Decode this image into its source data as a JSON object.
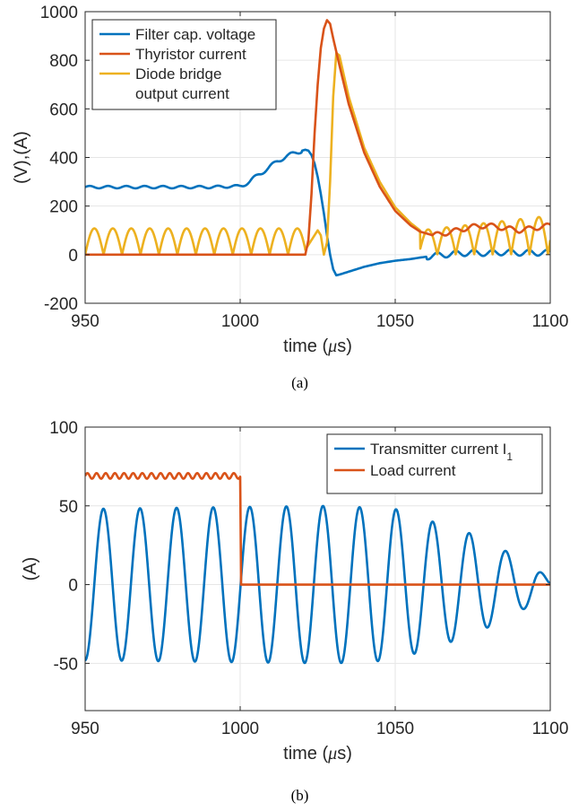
{
  "chart_data": [
    {
      "type": "line",
      "caption": "(a)",
      "xlabel_main": "time (",
      "xlabel_greek": "μ",
      "xlabel_end": "s)",
      "ylabel": "(V),(A)",
      "xlim": [
        950,
        1100
      ],
      "ylim": [
        -200,
        1000
      ],
      "xticks": [
        "950",
        "1000",
        "1050",
        "1100"
      ],
      "yticks": [
        "-200",
        "0",
        "200",
        "400",
        "600",
        "800",
        "1000"
      ],
      "grid": true,
      "legend_position": "top-left",
      "legend_lines": [
        {
          "text": "Filter cap. voltage",
          "color": "#0072BD"
        },
        {
          "text": "Thyristor current",
          "color": "#D95319"
        },
        {
          "text": "Diode bridge",
          "color": "#EDB120"
        },
        {
          "text": "output current",
          "color": ""
        }
      ],
      "series": [
        {
          "name": "Filter cap. voltage",
          "color": "#0072BD",
          "x": [
            950,
            960,
            970,
            980,
            990,
            1000,
            1003,
            1006,
            1009,
            1012,
            1015,
            1018,
            1021,
            1022,
            1023,
            1024,
            1025,
            1026,
            1027,
            1028,
            1029,
            1030,
            1031,
            1032,
            1035,
            1040,
            1045,
            1050,
            1055,
            1058,
            1062,
            1066,
            1070,
            1075,
            1080,
            1085,
            1090,
            1095,
            1100
          ],
          "y": [
            278,
            278,
            278,
            278,
            278,
            282,
            300,
            330,
            355,
            385,
            405,
            420,
            432,
            428,
            410,
            375,
            320,
            250,
            170,
            80,
            0,
            -60,
            -85,
            -82,
            -70,
            -50,
            -35,
            -25,
            -18,
            -12,
            -5,
            0,
            5,
            8,
            6,
            10,
            8,
            8,
            8
          ]
        },
        {
          "name": "Thyristor current",
          "color": "#D95319",
          "x": [
            950,
            1021,
            1022,
            1023,
            1024,
            1025,
            1026,
            1027,
            1028,
            1029,
            1030,
            1032,
            1035,
            1040,
            1045,
            1050,
            1055,
            1058,
            1062,
            1065,
            1070,
            1075,
            1080,
            1085,
            1090,
            1095,
            1100
          ],
          "y": [
            0,
            0,
            60,
            250,
            500,
            700,
            850,
            930,
            965,
            950,
            890,
            780,
            620,
            420,
            280,
            180,
            120,
            95,
            80,
            85,
            100,
            115,
            120,
            110,
            100,
            110,
            120
          ]
        },
        {
          "name": "Diode bridge output current",
          "color": "#EDB120",
          "x": [
            950,
            1020,
            1023,
            1025,
            1026,
            1027,
            1028,
            1029,
            1030,
            1031,
            1032,
            1035,
            1040,
            1045,
            1050,
            1055,
            1058,
            1100
          ],
          "y": [
            0,
            0,
            60,
            100,
            80,
            0,
            50,
            300,
            650,
            830,
            820,
            650,
            440,
            300,
            195,
            130,
            100,
            0
          ],
          "note_ripple": true
        }
      ]
    },
    {
      "type": "line",
      "caption": "(b)",
      "xlabel_main": "time (",
      "xlabel_greek": "μ",
      "xlabel_end": "s)",
      "ylabel": "(A)",
      "xlim": [
        950,
        1100
      ],
      "ylim": [
        -80,
        100
      ],
      "xticks": [
        "950",
        "1000",
        "1050",
        "1100"
      ],
      "yticks": [
        "-50",
        "0",
        "50",
        "100"
      ],
      "grid": true,
      "legend_position": "top-right",
      "legend_lines": [
        {
          "text": "Transmitter current I",
          "sub": "1",
          "color": "#0072BD"
        },
        {
          "text": "Load current",
          "color": "#D95319"
        }
      ],
      "series": [
        {
          "name": "Transmitter current I1",
          "color": "#0072BD",
          "period_us": 11.8,
          "amplitude": [
            [
              950,
              48
            ],
            [
              1030,
              50
            ],
            [
              1050,
              48
            ],
            [
              1062,
              40
            ],
            [
              1075,
              32
            ],
            [
              1085,
              22
            ],
            [
              1095,
              12
            ],
            [
              1100,
              2
            ]
          ]
        },
        {
          "name": "Load current",
          "color": "#D95319",
          "x": [
            950,
            1000,
            1000.3,
            1100
          ],
          "y": [
            69,
            69,
            0,
            0
          ]
        }
      ]
    }
  ]
}
